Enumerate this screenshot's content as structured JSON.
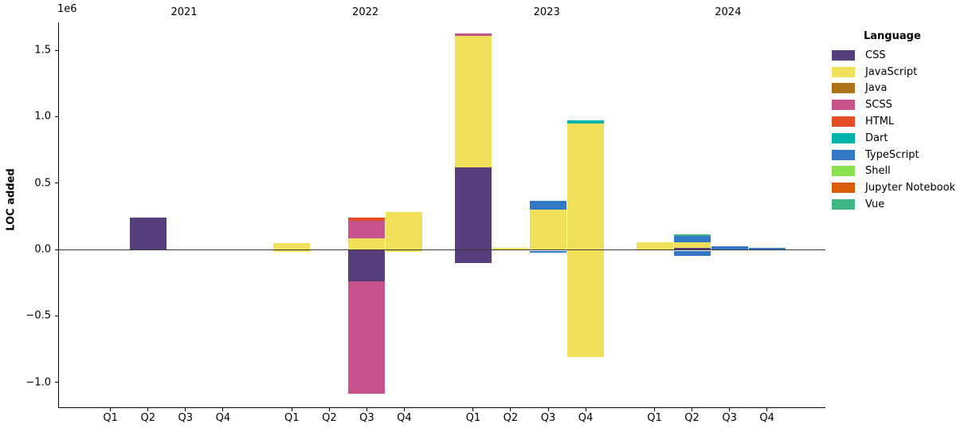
{
  "chart_data": {
    "type": "stacked_bar",
    "title": "",
    "ylabel": "LOC added",
    "y_offset_label": "1e6",
    "ylim": [
      -1194000,
      1710000
    ],
    "grid": false,
    "legend_position": "right",
    "legend_title": "Language",
    "languages": [
      {
        "name": "CSS",
        "color": "#563d7c"
      },
      {
        "name": "JavaScript",
        "color": "#f1e05a"
      },
      {
        "name": "Java",
        "color": "#b07219"
      },
      {
        "name": "SCSS",
        "color": "#c6538c"
      },
      {
        "name": "HTML",
        "color": "#e34c26"
      },
      {
        "name": "Dart",
        "color": "#00b4ab"
      },
      {
        "name": "TypeScript",
        "color": "#3178c6"
      },
      {
        "name": "Shell",
        "color": "#89e051"
      },
      {
        "name": "Jupyter Notebook",
        "color": "#da5b0b"
      },
      {
        "name": "Vue",
        "color": "#41b883"
      }
    ],
    "yticks": [
      {
        "value": 1500000,
        "label": "1.5"
      },
      {
        "value": 1000000,
        "label": "1.0"
      },
      {
        "value": 500000,
        "label": "0.5"
      },
      {
        "value": 0,
        "label": "0.0"
      },
      {
        "value": -500000,
        "label": "−0.5"
      },
      {
        "value": -1000000,
        "label": "−1.0"
      }
    ],
    "years": [
      "2021",
      "2022",
      "2023",
      "2024"
    ],
    "quarters": [
      "Q1",
      "Q2",
      "Q3",
      "Q4"
    ],
    "bars": [
      {
        "year": "2021",
        "quarter": "Q2",
        "segments": [
          {
            "language": "CSS",
            "from": 0,
            "to": 240000
          }
        ]
      },
      {
        "year": "2022",
        "quarter": "Q1",
        "segments": [
          {
            "language": "JavaScript",
            "from": -18000,
            "to": 50000
          }
        ]
      },
      {
        "year": "2022",
        "quarter": "Q3",
        "segments": [
          {
            "language": "HTML",
            "from": 216000,
            "to": 240000
          },
          {
            "language": "SCSS",
            "from": 86000,
            "to": 216000
          },
          {
            "language": "JavaScript",
            "from": 0,
            "to": 86000
          },
          {
            "language": "CSS",
            "from": -240000,
            "to": 0
          },
          {
            "language": "SCSS",
            "from": -1083000,
            "to": -240000
          }
        ]
      },
      {
        "year": "2022",
        "quarter": "Q4",
        "segments": [
          {
            "language": "JavaScript",
            "from": -20000,
            "to": 282000
          }
        ]
      },
      {
        "year": "2023",
        "quarter": "Q1",
        "segments": [
          {
            "language": "SCSS",
            "from": 1608000,
            "to": 1628000
          },
          {
            "language": "JavaScript",
            "from": 620000,
            "to": 1608000
          },
          {
            "language": "CSS",
            "from": -104000,
            "to": 620000
          }
        ]
      },
      {
        "year": "2023",
        "quarter": "Q2",
        "segments": [
          {
            "language": "JavaScript",
            "from": 0,
            "to": 12000
          }
        ]
      },
      {
        "year": "2023",
        "quarter": "Q3",
        "segments": [
          {
            "language": "TypeScript",
            "from": 300000,
            "to": 366000
          },
          {
            "language": "JavaScript",
            "from": 0,
            "to": 300000
          },
          {
            "language": "TypeScript",
            "from": -24000,
            "to": -12000
          }
        ]
      },
      {
        "year": "2023",
        "quarter": "Q4",
        "segments": [
          {
            "language": "Dart",
            "from": 948000,
            "to": 972000
          },
          {
            "language": "JavaScript",
            "from": -810000,
            "to": 948000
          }
        ]
      },
      {
        "year": "2024",
        "quarter": "Q1",
        "segments": [
          {
            "language": "JavaScript",
            "from": 0,
            "to": 56000
          }
        ]
      },
      {
        "year": "2024",
        "quarter": "Q2",
        "segments": [
          {
            "language": "Vue",
            "from": 104000,
            "to": 116000
          },
          {
            "language": "TypeScript",
            "from": 56000,
            "to": 104000
          },
          {
            "language": "JavaScript",
            "from": 12000,
            "to": 56000
          },
          {
            "language": "CSS",
            "from": -8000,
            "to": 12000
          },
          {
            "language": "TypeScript",
            "from": -48000,
            "to": -14000
          }
        ]
      },
      {
        "year": "2024",
        "quarter": "Q3",
        "segments": [
          {
            "language": "TypeScript",
            "from": 0,
            "to": 26000
          }
        ]
      },
      {
        "year": "2024",
        "quarter": "Q4",
        "segments": [
          {
            "language": "TypeScript",
            "from": 0,
            "to": 14000
          }
        ]
      }
    ]
  }
}
